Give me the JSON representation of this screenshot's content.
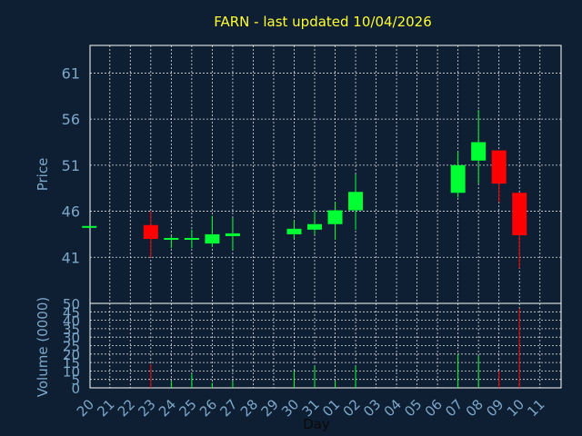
{
  "chart_data": {
    "type": "candlestick",
    "title": "FARN - last updated 10/04/2026",
    "ylabel": "Price",
    "volume_label": "Volume (0000)",
    "xlabel": "Day",
    "price_ylim": [
      36,
      64
    ],
    "price_ticks": [
      41,
      46,
      51,
      56,
      61
    ],
    "volume_ylim": [
      0,
      50
    ],
    "volume_ticks": [
      0,
      5,
      10,
      15,
      20,
      25,
      30,
      35,
      40,
      45,
      50
    ],
    "x_labels": [
      "20",
      "21",
      "22",
      "23",
      "24",
      "25",
      "26",
      "27",
      "28",
      "29",
      "30",
      "31",
      "01",
      "02",
      "03",
      "04",
      "05",
      "06",
      "07",
      "08",
      "09",
      "10",
      "11"
    ],
    "grid": true,
    "colors": {
      "up": "#00ff33",
      "down": "#ff0000",
      "background": "#0f1f33",
      "text": "#7ba7c9",
      "title": "#ffff33"
    },
    "candles": [
      {
        "x": "20",
        "open": 44.4,
        "high": 44.4,
        "low": 44.4,
        "close": 44.4,
        "volume": 0
      },
      {
        "x": "23",
        "open": 44.5,
        "high": 46.0,
        "low": 41.0,
        "close": 43.0,
        "volume": 14
      },
      {
        "x": "24",
        "open": 42.9,
        "high": 43.3,
        "low": 42.0,
        "close": 43.1,
        "volume": 4
      },
      {
        "x": "25",
        "open": 42.9,
        "high": 44.0,
        "low": 42.0,
        "close": 43.1,
        "volume": 8
      },
      {
        "x": "26",
        "open": 42.5,
        "high": 45.5,
        "low": 42.1,
        "close": 43.5,
        "volume": 3
      },
      {
        "x": "27",
        "open": 43.3,
        "high": 45.3,
        "low": 41.8,
        "close": 43.6,
        "volume": 4
      },
      {
        "x": "30",
        "open": 43.5,
        "high": 45.0,
        "low": 43.0,
        "close": 44.1,
        "volume": 10
      },
      {
        "x": "31",
        "open": 44.0,
        "high": 46.0,
        "low": 43.5,
        "close": 44.6,
        "volume": 13
      },
      {
        "x": "01",
        "open": 44.6,
        "high": 47.0,
        "low": 42.9,
        "close": 46.1,
        "volume": 4
      },
      {
        "x": "02",
        "open": 46.1,
        "high": 50.0,
        "low": 44.0,
        "close": 48.1,
        "volume": 13
      },
      {
        "x": "07",
        "open": 48.0,
        "high": 52.5,
        "low": 47.5,
        "close": 51.0,
        "volume": 20
      },
      {
        "x": "08",
        "open": 51.5,
        "high": 57.0,
        "low": 49.0,
        "close": 53.5,
        "volume": 19
      },
      {
        "x": "09",
        "open": 52.6,
        "high": 52.6,
        "low": 47.0,
        "close": 49.0,
        "volume": 10
      },
      {
        "x": "10",
        "open": 48.0,
        "high": 48.0,
        "low": 39.8,
        "close": 43.4,
        "volume": 47
      }
    ]
  }
}
